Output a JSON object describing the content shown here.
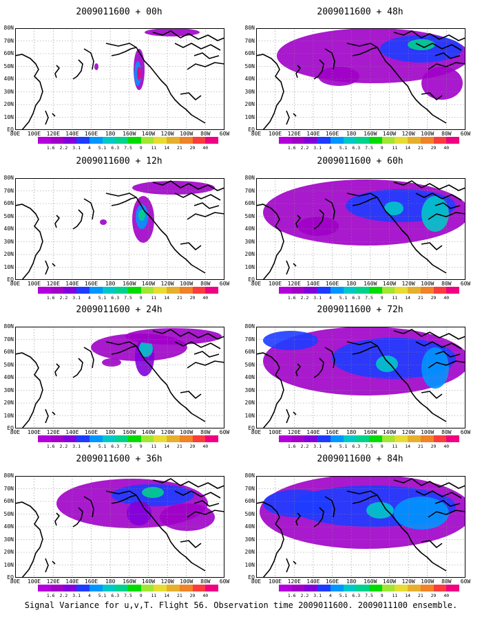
{
  "panels": [
    {
      "title": "2009011600 + 00h",
      "col": 0,
      "row": 0,
      "level": 0
    },
    {
      "title": "2009011600 + 12h",
      "col": 0,
      "row": 1,
      "level": 1
    },
    {
      "title": "2009011600 + 24h",
      "col": 0,
      "row": 2,
      "level": 2
    },
    {
      "title": "2009011600 + 36h",
      "col": 0,
      "row": 3,
      "level": 3
    },
    {
      "title": "2009011600 + 48h",
      "col": 1,
      "row": 0,
      "level": 4
    },
    {
      "title": "2009011600 + 60h",
      "col": 1,
      "row": 1,
      "level": 5
    },
    {
      "title": "2009011600 + 72h",
      "col": 1,
      "row": 2,
      "level": 6
    },
    {
      "title": "2009011600 + 84h",
      "col": 1,
      "row": 3,
      "level": 7
    }
  ],
  "lat_labels": [
    "80N",
    "70N",
    "60N",
    "50N",
    "40N",
    "30N",
    "20N",
    "10N",
    "EQ"
  ],
  "lon_labels": [
    "80E",
    "100E",
    "120E",
    "140E",
    "160E",
    "180",
    "160W",
    "140W",
    "120W",
    "100W",
    "80W",
    "60W"
  ],
  "colorbar": {
    "labels": [
      "1.6",
      "2.2",
      "3.1",
      "4",
      "5.1",
      "6.3",
      "7.5",
      "9",
      "11",
      "14",
      "21",
      "29",
      "40"
    ],
    "colors": [
      "#a000c8",
      "#8200dc",
      "#1e3cff",
      "#0096ff",
      "#00c8c8",
      "#00d28c",
      "#00dc00",
      "#a0e632",
      "#e6dc32",
      "#e6af2d",
      "#f08228",
      "#fa3c3c",
      "#f00082"
    ]
  },
  "caption": "Signal Variance for u,v,T. Flight 56. Observation time 2009011600. 2009011100 ensemble."
}
